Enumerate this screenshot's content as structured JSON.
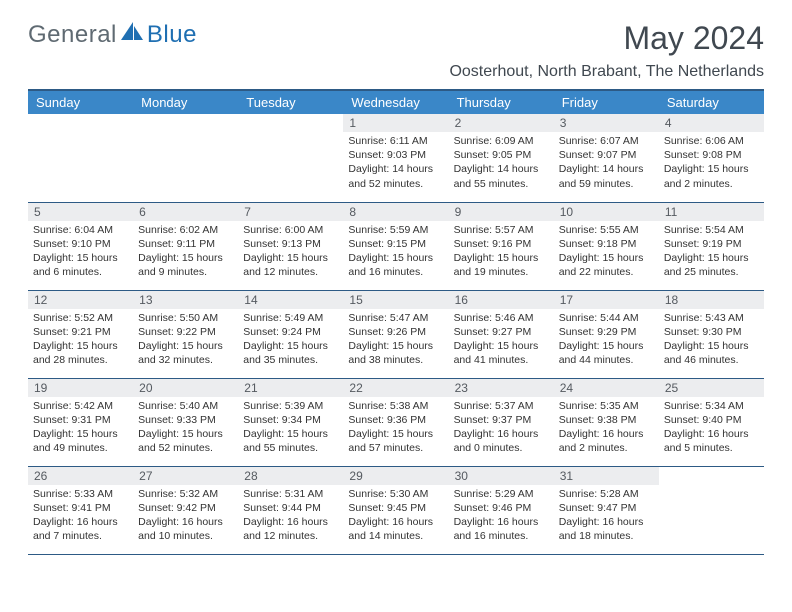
{
  "brand": {
    "name": "General",
    "accent": "Blue"
  },
  "title": "May 2024",
  "location": "Oosterhout, North Brabant, The Netherlands",
  "colors": {
    "header_bg": "#3a87c8",
    "header_border": "#2d5a85",
    "daynum_bg": "#ecedef",
    "text": "#404850"
  },
  "weekdays": [
    "Sunday",
    "Monday",
    "Tuesday",
    "Wednesday",
    "Thursday",
    "Friday",
    "Saturday"
  ],
  "weeks": [
    [
      null,
      null,
      null,
      {
        "n": "1",
        "sr": "6:11 AM",
        "ss": "9:03 PM",
        "dl": "14 hours and 52 minutes."
      },
      {
        "n": "2",
        "sr": "6:09 AM",
        "ss": "9:05 PM",
        "dl": "14 hours and 55 minutes."
      },
      {
        "n": "3",
        "sr": "6:07 AM",
        "ss": "9:07 PM",
        "dl": "14 hours and 59 minutes."
      },
      {
        "n": "4",
        "sr": "6:06 AM",
        "ss": "9:08 PM",
        "dl": "15 hours and 2 minutes."
      }
    ],
    [
      {
        "n": "5",
        "sr": "6:04 AM",
        "ss": "9:10 PM",
        "dl": "15 hours and 6 minutes."
      },
      {
        "n": "6",
        "sr": "6:02 AM",
        "ss": "9:11 PM",
        "dl": "15 hours and 9 minutes."
      },
      {
        "n": "7",
        "sr": "6:00 AM",
        "ss": "9:13 PM",
        "dl": "15 hours and 12 minutes."
      },
      {
        "n": "8",
        "sr": "5:59 AM",
        "ss": "9:15 PM",
        "dl": "15 hours and 16 minutes."
      },
      {
        "n": "9",
        "sr": "5:57 AM",
        "ss": "9:16 PM",
        "dl": "15 hours and 19 minutes."
      },
      {
        "n": "10",
        "sr": "5:55 AM",
        "ss": "9:18 PM",
        "dl": "15 hours and 22 minutes."
      },
      {
        "n": "11",
        "sr": "5:54 AM",
        "ss": "9:19 PM",
        "dl": "15 hours and 25 minutes."
      }
    ],
    [
      {
        "n": "12",
        "sr": "5:52 AM",
        "ss": "9:21 PM",
        "dl": "15 hours and 28 minutes."
      },
      {
        "n": "13",
        "sr": "5:50 AM",
        "ss": "9:22 PM",
        "dl": "15 hours and 32 minutes."
      },
      {
        "n": "14",
        "sr": "5:49 AM",
        "ss": "9:24 PM",
        "dl": "15 hours and 35 minutes."
      },
      {
        "n": "15",
        "sr": "5:47 AM",
        "ss": "9:26 PM",
        "dl": "15 hours and 38 minutes."
      },
      {
        "n": "16",
        "sr": "5:46 AM",
        "ss": "9:27 PM",
        "dl": "15 hours and 41 minutes."
      },
      {
        "n": "17",
        "sr": "5:44 AM",
        "ss": "9:29 PM",
        "dl": "15 hours and 44 minutes."
      },
      {
        "n": "18",
        "sr": "5:43 AM",
        "ss": "9:30 PM",
        "dl": "15 hours and 46 minutes."
      }
    ],
    [
      {
        "n": "19",
        "sr": "5:42 AM",
        "ss": "9:31 PM",
        "dl": "15 hours and 49 minutes."
      },
      {
        "n": "20",
        "sr": "5:40 AM",
        "ss": "9:33 PM",
        "dl": "15 hours and 52 minutes."
      },
      {
        "n": "21",
        "sr": "5:39 AM",
        "ss": "9:34 PM",
        "dl": "15 hours and 55 minutes."
      },
      {
        "n": "22",
        "sr": "5:38 AM",
        "ss": "9:36 PM",
        "dl": "15 hours and 57 minutes."
      },
      {
        "n": "23",
        "sr": "5:37 AM",
        "ss": "9:37 PM",
        "dl": "16 hours and 0 minutes."
      },
      {
        "n": "24",
        "sr": "5:35 AM",
        "ss": "9:38 PM",
        "dl": "16 hours and 2 minutes."
      },
      {
        "n": "25",
        "sr": "5:34 AM",
        "ss": "9:40 PM",
        "dl": "16 hours and 5 minutes."
      }
    ],
    [
      {
        "n": "26",
        "sr": "5:33 AM",
        "ss": "9:41 PM",
        "dl": "16 hours and 7 minutes."
      },
      {
        "n": "27",
        "sr": "5:32 AM",
        "ss": "9:42 PM",
        "dl": "16 hours and 10 minutes."
      },
      {
        "n": "28",
        "sr": "5:31 AM",
        "ss": "9:44 PM",
        "dl": "16 hours and 12 minutes."
      },
      {
        "n": "29",
        "sr": "5:30 AM",
        "ss": "9:45 PM",
        "dl": "16 hours and 14 minutes."
      },
      {
        "n": "30",
        "sr": "5:29 AM",
        "ss": "9:46 PM",
        "dl": "16 hours and 16 minutes."
      },
      {
        "n": "31",
        "sr": "5:28 AM",
        "ss": "9:47 PM",
        "dl": "16 hours and 18 minutes."
      },
      null
    ]
  ],
  "labels": {
    "sunrise": "Sunrise:",
    "sunset": "Sunset:",
    "daylight": "Daylight:"
  }
}
